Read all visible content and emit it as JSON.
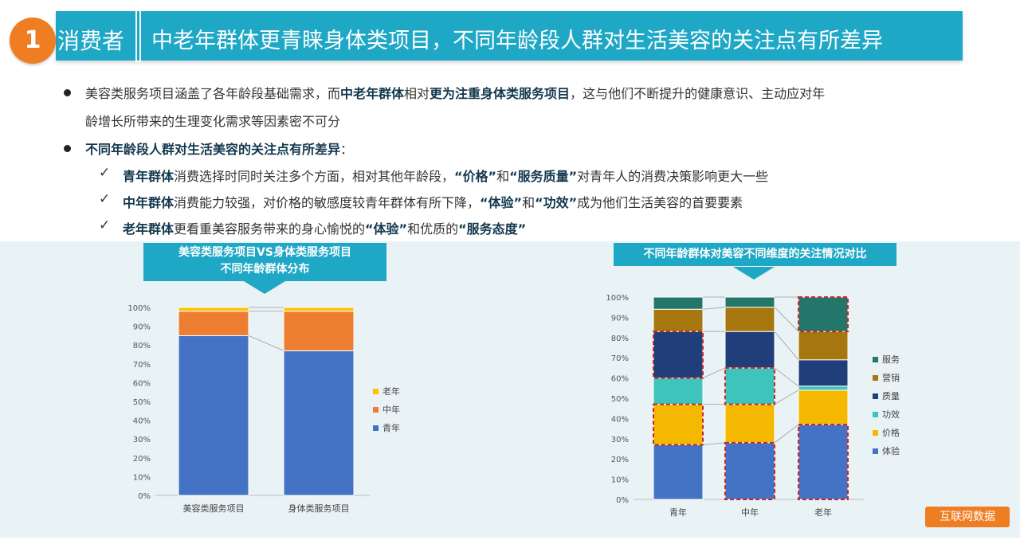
{
  "header": {
    "number": "1",
    "section": "消费者",
    "headline": "中老年群体更青睐身体类项目，不同年龄段人群对生活美容的关注点有所差异"
  },
  "bullets": [
    {
      "line1": [
        "美容类服务项目涵盖了各年龄段基础需求，而",
        "中老年群体",
        "相对",
        "更为注重身体类服务项目",
        "，这与他们不断提升的健康意识、主动应对年"
      ],
      "line2": "龄增长所带来的生理变化需求等因素密不可分"
    },
    {
      "heading": "不同年龄段人群对生活美容的关注点有所差异",
      "heading_suffix": "："
    }
  ],
  "subpoints": [
    {
      "bold": "青年群体",
      "parts": [
        "消费选择时同时关注多个方面，相对其他年龄段，",
        "“价格”",
        "和",
        "“服务质量”",
        "对青年人的消费决策影响更大一些"
      ]
    },
    {
      "bold": "中年群体",
      "parts": [
        "消费能力较强，对价格的敏感度较青年群体有所下降，",
        "“体验”",
        "和",
        "“功效”",
        "成为他们生活美容的首要要素"
      ]
    },
    {
      "bold": "老年群体",
      "parts": [
        "更看重美容服务带来的身心愉悦的",
        "“体验”",
        "和优质的",
        "“服务态度”",
        ""
      ]
    }
  ],
  "chart_data": [
    {
      "type": "bar",
      "stacked": true,
      "title": "美容类服务项目VS身体类服务项目 不同年龄群体分布",
      "title_lines": [
        "美容类服务项目VS身体类服务项目",
        "不同年龄群体分布"
      ],
      "categories": [
        "美容类服务项目",
        "身体类服务项目"
      ],
      "series": [
        {
          "name": "青年",
          "color": "#4472c4",
          "values": [
            85,
            77
          ]
        },
        {
          "name": "中年",
          "color": "#ed7d31",
          "values": [
            13,
            21
          ]
        },
        {
          "name": "老年",
          "color": "#ffc000",
          "values": [
            2,
            2
          ]
        }
      ],
      "ylim": [
        0,
        100
      ],
      "yticks": [
        "0%",
        "10%",
        "20%",
        "30%",
        "40%",
        "50%",
        "60%",
        "70%",
        "80%",
        "90%",
        "100%"
      ],
      "legend": "right",
      "grid": false
    },
    {
      "type": "bar",
      "stacked": true,
      "title": "不同年龄群体对美容不同维度的关注情况对比",
      "categories": [
        "青年",
        "中年",
        "老年"
      ],
      "series": [
        {
          "name": "体验",
          "color": "#4472c4",
          "values": [
            27,
            28,
            37
          ]
        },
        {
          "name": "价格",
          "color": "#f5b800",
          "values": [
            20,
            19,
            17
          ]
        },
        {
          "name": "功效",
          "color": "#3fc3bd",
          "values": [
            13,
            18,
            2
          ]
        },
        {
          "name": "质量",
          "color": "#203e79",
          "values": [
            23,
            18,
            13
          ]
        },
        {
          "name": "营销",
          "color": "#a5770e",
          "values": [
            11,
            12,
            14
          ]
        },
        {
          "name": "服务",
          "color": "#22766a",
          "values": [
            6,
            5,
            17
          ]
        }
      ],
      "highlighted": [
        {
          "category": "青年",
          "series": [
            "价格",
            "质量"
          ]
        },
        {
          "category": "中年",
          "series": [
            "体验",
            "功效"
          ]
        },
        {
          "category": "老年",
          "series": [
            "体验",
            "服务"
          ]
        }
      ],
      "ylim": [
        0,
        100
      ],
      "yticks": [
        "0%",
        "10%",
        "20%",
        "30%",
        "40%",
        "50%",
        "60%",
        "70%",
        "80%",
        "90%",
        "100%"
      ],
      "legend": "right",
      "grid": false
    }
  ],
  "footer": {
    "source_label": "互联网数据"
  },
  "colors": {
    "accent": "#1fa7c6",
    "badge": "#ef7d22",
    "panel": "#e9f2f5"
  }
}
